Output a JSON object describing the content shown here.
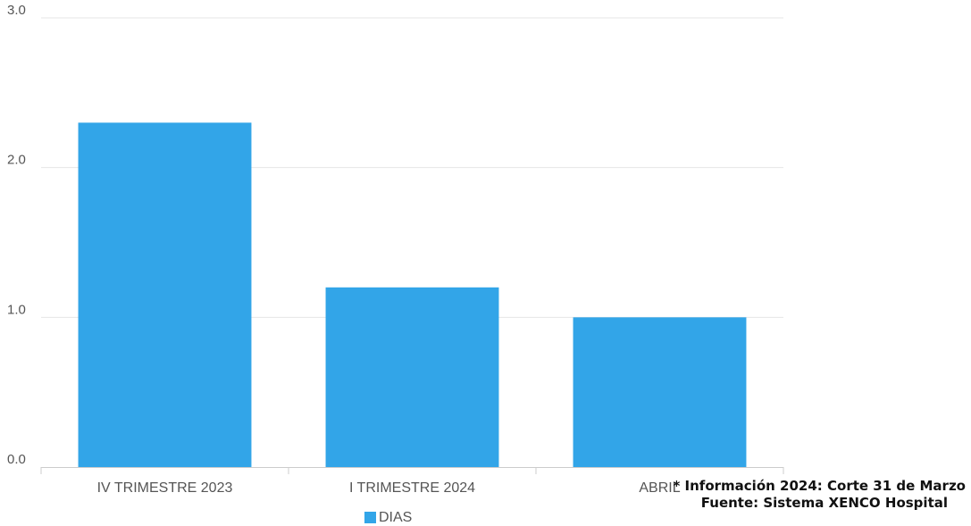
{
  "chart_data": {
    "type": "bar",
    "categories": [
      "IV TRIMESTRE 2023",
      "I TRIMESTRE 2024",
      "ABRIL"
    ],
    "series": [
      {
        "name": "DIAS",
        "values": [
          2.3,
          1.2,
          1.0
        ],
        "color": "#32a5e8"
      }
    ],
    "ylim": [
      0,
      3
    ],
    "yticks": [
      "0.0",
      "1.0",
      "2.0",
      "3.0"
    ],
    "grid": true,
    "legend_position": "bottom-center"
  },
  "notes": {
    "line1": "* Información 2024: Corte 31 de Marzo",
    "line2": "Fuente: Sistema XENCO Hospital"
  },
  "colors": {
    "bar": "#32a5e8",
    "grid": "#e6e6e6",
    "axis": "#cccccc",
    "text": "#555555"
  }
}
